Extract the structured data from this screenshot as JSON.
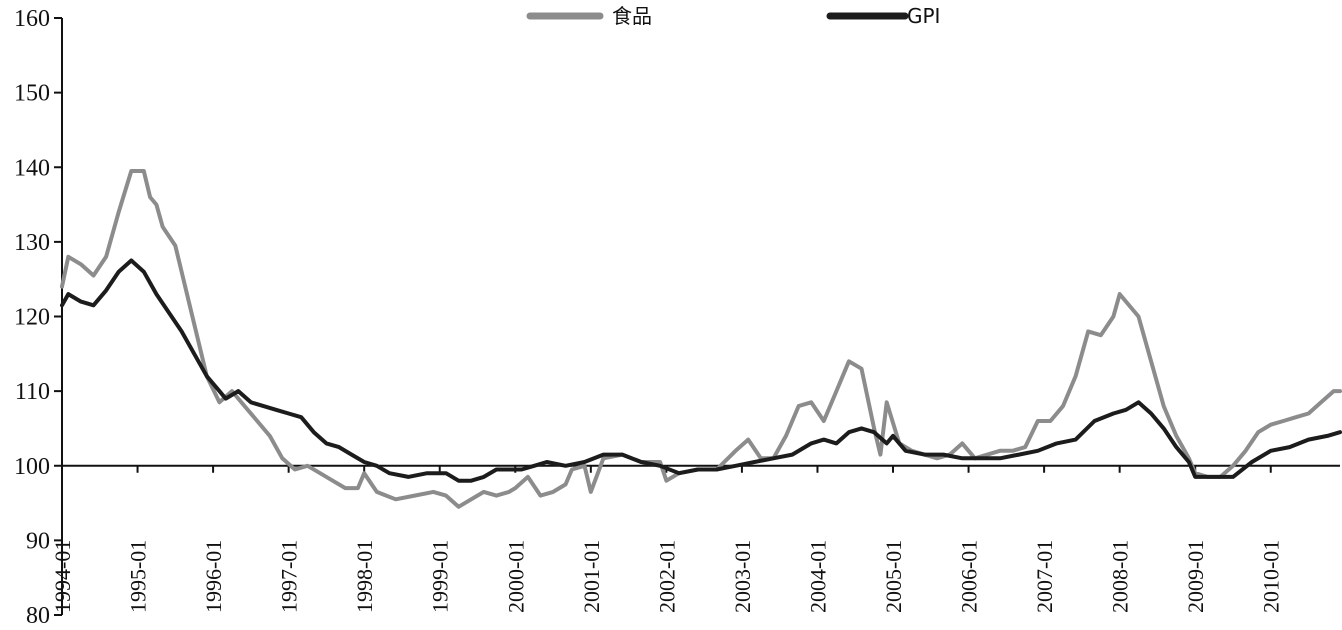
{
  "chart_data": {
    "type": "line",
    "title": "",
    "xlabel": "",
    "ylabel": "",
    "ylim": [
      80,
      160
    ],
    "yticks": [
      80,
      90,
      100,
      110,
      120,
      130,
      140,
      150,
      160
    ],
    "xlim": [
      "1994-01",
      "2010-12"
    ],
    "xtick_labels": [
      "1994-01",
      "1995-01",
      "1996-01",
      "1997-01",
      "1998-01",
      "1999-01",
      "2000-01",
      "2001-01",
      "2002-01",
      "2003-01",
      "2004-01",
      "2005-01",
      "2006-01",
      "2007-01",
      "2008-01",
      "2009-01",
      "2010-01"
    ],
    "reference_line": 100,
    "grid": false,
    "legend_position": "top-center",
    "series": [
      {
        "name": "食品",
        "color": "#8c8c8c",
        "points": [
          [
            "1994-01",
            124
          ],
          [
            "1994-02",
            128
          ],
          [
            "1994-04",
            127
          ],
          [
            "1994-06",
            125.5
          ],
          [
            "1994-08",
            128
          ],
          [
            "1994-10",
            134
          ],
          [
            "1994-12",
            139.5
          ],
          [
            "1995-02",
            139.5
          ],
          [
            "1995-03",
            136
          ],
          [
            "1995-04",
            135
          ],
          [
            "1995-05",
            132
          ],
          [
            "1995-07",
            129.5
          ],
          [
            "1995-08",
            126
          ],
          [
            "1995-10",
            119
          ],
          [
            "1995-12",
            112
          ],
          [
            "1996-02",
            108.5
          ],
          [
            "1996-04",
            110
          ],
          [
            "1996-06",
            108
          ],
          [
            "1996-08",
            106
          ],
          [
            "1996-10",
            104
          ],
          [
            "1996-12",
            101
          ],
          [
            "1997-02",
            99.5
          ],
          [
            "1997-04",
            100
          ],
          [
            "1997-06",
            99
          ],
          [
            "1997-08",
            98
          ],
          [
            "1997-10",
            97
          ],
          [
            "1997-12",
            97
          ],
          [
            "1998-01",
            99
          ],
          [
            "1998-03",
            96.5
          ],
          [
            "1998-06",
            95.5
          ],
          [
            "1998-09",
            96
          ],
          [
            "1998-12",
            96.5
          ],
          [
            "1999-02",
            96
          ],
          [
            "1999-04",
            94.5
          ],
          [
            "1999-06",
            95.5
          ],
          [
            "1999-08",
            96.5
          ],
          [
            "1999-10",
            96
          ],
          [
            "1999-12",
            96.5
          ],
          [
            "2000-01",
            97
          ],
          [
            "2000-03",
            98.5
          ],
          [
            "2000-05",
            96
          ],
          [
            "2000-07",
            96.5
          ],
          [
            "2000-09",
            97.5
          ],
          [
            "2000-10",
            99.5
          ],
          [
            "2000-12",
            100
          ],
          [
            "2001-01",
            96.5
          ],
          [
            "2001-03",
            101
          ],
          [
            "2001-06",
            101.5
          ],
          [
            "2001-09",
            100.5
          ],
          [
            "2001-12",
            100.5
          ],
          [
            "2002-01",
            98
          ],
          [
            "2002-03",
            99
          ],
          [
            "2002-06",
            99.5
          ],
          [
            "2002-09",
            99.5
          ],
          [
            "2002-12",
            102
          ],
          [
            "2003-02",
            103.5
          ],
          [
            "2003-04",
            101
          ],
          [
            "2003-06",
            101
          ],
          [
            "2003-08",
            104
          ],
          [
            "2003-10",
            108
          ],
          [
            "2003-12",
            108.5
          ],
          [
            "2004-02",
            106
          ],
          [
            "2004-04",
            110
          ],
          [
            "2004-06",
            114
          ],
          [
            "2004-08",
            113
          ],
          [
            "2004-10",
            105
          ],
          [
            "2004-11",
            101.5
          ],
          [
            "2004-12",
            108.5
          ],
          [
            "2005-02",
            103
          ],
          [
            "2005-04",
            102
          ],
          [
            "2005-06",
            101.5
          ],
          [
            "2005-08",
            101
          ],
          [
            "2005-10",
            101.5
          ],
          [
            "2005-12",
            103
          ],
          [
            "2006-02",
            101
          ],
          [
            "2006-04",
            101.5
          ],
          [
            "2006-06",
            102
          ],
          [
            "2006-08",
            102
          ],
          [
            "2006-10",
            102.5
          ],
          [
            "2006-12",
            106
          ],
          [
            "2007-02",
            106
          ],
          [
            "2007-04",
            108
          ],
          [
            "2007-06",
            112
          ],
          [
            "2007-08",
            118
          ],
          [
            "2007-10",
            117.5
          ],
          [
            "2007-12",
            120
          ],
          [
            "2008-01",
            123
          ],
          [
            "2008-02",
            122
          ],
          [
            "2008-04",
            120
          ],
          [
            "2008-06",
            114
          ],
          [
            "2008-08",
            108
          ],
          [
            "2008-10",
            104
          ],
          [
            "2008-12",
            101
          ],
          [
            "2009-01",
            99
          ],
          [
            "2009-03",
            98.5
          ],
          [
            "2009-05",
            98.5
          ],
          [
            "2009-07",
            100
          ],
          [
            "2009-09",
            102
          ],
          [
            "2009-11",
            104.5
          ],
          [
            "2010-01",
            105.5
          ],
          [
            "2010-03",
            106
          ],
          [
            "2010-05",
            106.5
          ],
          [
            "2010-07",
            107
          ],
          [
            "2010-09",
            108.5
          ],
          [
            "2010-11",
            110
          ],
          [
            "2010-12",
            110
          ]
        ]
      },
      {
        "name": "GPI",
        "color": "#1c1c1c",
        "points": [
          [
            "1994-01",
            121.5
          ],
          [
            "1994-02",
            123
          ],
          [
            "1994-04",
            122
          ],
          [
            "1994-06",
            121.5
          ],
          [
            "1994-08",
            123.5
          ],
          [
            "1994-10",
            126
          ],
          [
            "1994-12",
            127.5
          ],
          [
            "1995-02",
            126
          ],
          [
            "1995-04",
            123
          ],
          [
            "1995-06",
            120.5
          ],
          [
            "1995-08",
            118
          ],
          [
            "1995-10",
            115
          ],
          [
            "1995-12",
            112
          ],
          [
            "1996-02",
            110
          ],
          [
            "1996-03",
            109
          ],
          [
            "1996-05",
            110
          ],
          [
            "1996-07",
            108.5
          ],
          [
            "1996-09",
            108
          ],
          [
            "1996-11",
            107.5
          ],
          [
            "1997-01",
            107
          ],
          [
            "1997-03",
            106.5
          ],
          [
            "1997-05",
            104.5
          ],
          [
            "1997-07",
            103
          ],
          [
            "1997-09",
            102.5
          ],
          [
            "1997-11",
            101.5
          ],
          [
            "1998-01",
            100.5
          ],
          [
            "1998-03",
            100
          ],
          [
            "1998-05",
            99
          ],
          [
            "1998-08",
            98.5
          ],
          [
            "1998-11",
            99
          ],
          [
            "1999-02",
            99
          ],
          [
            "1999-04",
            98
          ],
          [
            "1999-06",
            98
          ],
          [
            "1999-08",
            98.5
          ],
          [
            "1999-10",
            99.5
          ],
          [
            "1999-12",
            99.5
          ],
          [
            "2000-02",
            99.5
          ],
          [
            "2000-04",
            100
          ],
          [
            "2000-06",
            100.5
          ],
          [
            "2000-09",
            100
          ],
          [
            "2000-12",
            100.5
          ],
          [
            "2001-03",
            101.5
          ],
          [
            "2001-06",
            101.5
          ],
          [
            "2001-09",
            100.5
          ],
          [
            "2001-12",
            100
          ],
          [
            "2002-03",
            99
          ],
          [
            "2002-06",
            99.5
          ],
          [
            "2002-09",
            99.5
          ],
          [
            "2002-12",
            100
          ],
          [
            "2003-03",
            100.5
          ],
          [
            "2003-06",
            101
          ],
          [
            "2003-09",
            101.5
          ],
          [
            "2003-12",
            103
          ],
          [
            "2004-02",
            103.5
          ],
          [
            "2004-04",
            103
          ],
          [
            "2004-06",
            104.5
          ],
          [
            "2004-08",
            105
          ],
          [
            "2004-10",
            104.5
          ],
          [
            "2004-12",
            103
          ],
          [
            "2005-01",
            104
          ],
          [
            "2005-03",
            102
          ],
          [
            "2005-06",
            101.5
          ],
          [
            "2005-09",
            101.5
          ],
          [
            "2005-12",
            101
          ],
          [
            "2006-03",
            101
          ],
          [
            "2006-06",
            101
          ],
          [
            "2006-09",
            101.5
          ],
          [
            "2006-12",
            102
          ],
          [
            "2007-03",
            103
          ],
          [
            "2007-06",
            103.5
          ],
          [
            "2007-09",
            106
          ],
          [
            "2007-12",
            107
          ],
          [
            "2008-02",
            107.5
          ],
          [
            "2008-04",
            108.5
          ],
          [
            "2008-06",
            107
          ],
          [
            "2008-08",
            105
          ],
          [
            "2008-10",
            102.5
          ],
          [
            "2008-12",
            100.5
          ],
          [
            "2009-01",
            98.5
          ],
          [
            "2009-04",
            98.5
          ],
          [
            "2009-07",
            98.5
          ],
          [
            "2009-10",
            100.5
          ],
          [
            "2010-01",
            102
          ],
          [
            "2010-04",
            102.5
          ],
          [
            "2010-07",
            103.5
          ],
          [
            "2010-10",
            104
          ],
          [
            "2010-12",
            104.5
          ]
        ]
      }
    ]
  }
}
